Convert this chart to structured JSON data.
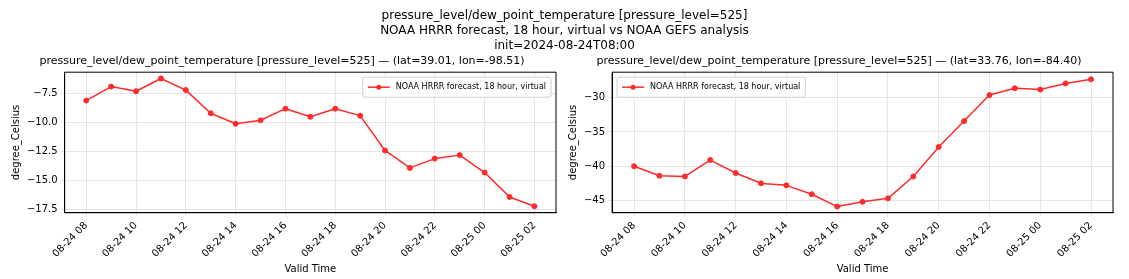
{
  "chart_data": [
    {
      "type": "other",
      "title": "pressure_level/dew_point_temperature [pressure_level=525]\nNOAA HRRR forecast, 18 hour, virtual vs NOAA GEFS analysis\ninit=2024-08-24T08:00"
    },
    {
      "type": "line",
      "title": "pressure_level/dew_point_temperature [pressure_level=525] — (lat=39.01, lon=-98.51)",
      "xlabel": "Valid Time",
      "ylabel": "degree_Celsius",
      "x": [
        "2024-08-24T08:00",
        "2024-08-24T09:00",
        "2024-08-24T10:00",
        "2024-08-24T11:00",
        "2024-08-24T12:00",
        "2024-08-24T13:00",
        "2024-08-24T14:00",
        "2024-08-24T15:00",
        "2024-08-24T16:00",
        "2024-08-24T17:00",
        "2024-08-24T18:00",
        "2024-08-24T19:00",
        "2024-08-24T20:00",
        "2024-08-24T21:00",
        "2024-08-24T22:00",
        "2024-08-24T23:00",
        "2024-08-25T00:00",
        "2024-08-25T01:00",
        "2024-08-25T02:00"
      ],
      "series": [
        {
          "name": "NOAA HRRR forecast, 18 hour, virtual",
          "color": "#ff2a2a",
          "values": [
            -8.1,
            -6.9,
            -7.3,
            -6.2,
            -7.2,
            -9.2,
            -10.1,
            -9.8,
            -8.8,
            -9.5,
            -8.8,
            -9.4,
            -12.4,
            -13.9,
            -13.1,
            -12.8,
            -14.3,
            -16.4,
            -17.2
          ]
        }
      ],
      "xlim": [
        "2024-08-24T07:08",
        "2024-08-25T02:52"
      ],
      "xticks": [
        {
          "value": "2024-08-24T08:00",
          "label": "08-24 08"
        },
        {
          "value": "2024-08-24T10:00",
          "label": "08-24 10"
        },
        {
          "value": "2024-08-24T12:00",
          "label": "08-24 12"
        },
        {
          "value": "2024-08-24T14:00",
          "label": "08-24 14"
        },
        {
          "value": "2024-08-24T16:00",
          "label": "08-24 16"
        },
        {
          "value": "2024-08-24T18:00",
          "label": "08-24 18"
        },
        {
          "value": "2024-08-24T20:00",
          "label": "08-24 20"
        },
        {
          "value": "2024-08-24T22:00",
          "label": "08-24 22"
        },
        {
          "value": "2024-08-25T00:00",
          "label": "08-25 00"
        },
        {
          "value": "2024-08-25T02:00",
          "label": "08-25 02"
        }
      ],
      "ylim": [
        -17.76,
        -5.66
      ],
      "yticks": [
        {
          "value": -17.5,
          "label": "−17.5"
        },
        {
          "value": -15,
          "label": "−15.0"
        },
        {
          "value": -12.5,
          "label": "−12.5"
        },
        {
          "value": -10,
          "label": "−10.0"
        },
        {
          "value": -7.5,
          "label": "−7.5"
        }
      ],
      "grid": true,
      "legend": "top right",
      "marker": "circle",
      "line_style": "solid"
    },
    {
      "type": "line",
      "title": "pressure_level/dew_point_temperature [pressure_level=525] — (lat=33.76, lon=-84.40)",
      "xlabel": "Valid Time",
      "ylabel": "degree_Celsius",
      "x": [
        "2024-08-24T08:00",
        "2024-08-24T09:00",
        "2024-08-24T10:00",
        "2024-08-24T11:00",
        "2024-08-24T12:00",
        "2024-08-24T13:00",
        "2024-08-24T14:00",
        "2024-08-24T15:00",
        "2024-08-24T16:00",
        "2024-08-24T17:00",
        "2024-08-24T18:00",
        "2024-08-24T19:00",
        "2024-08-24T20:00",
        "2024-08-24T21:00",
        "2024-08-24T22:00",
        "2024-08-24T23:00",
        "2024-08-25T00:00",
        "2024-08-25T01:00",
        "2024-08-25T02:00"
      ],
      "series": [
        {
          "name": "NOAA HRRR forecast, 18 hour, virtual",
          "color": "#ff2a2a",
          "values": [
            -40.0,
            -41.4,
            -41.5,
            -39.1,
            -41.0,
            -42.5,
            -42.8,
            -44.1,
            -45.9,
            -45.2,
            -44.7,
            -41.5,
            -37.2,
            -33.4,
            -29.6,
            -28.6,
            -28.8,
            -27.9,
            -27.3
          ]
        }
      ],
      "xlim": [
        "2024-08-24T07:08",
        "2024-08-25T02:52"
      ],
      "xticks": [
        {
          "value": "2024-08-24T08:00",
          "label": "08-24 08"
        },
        {
          "value": "2024-08-24T10:00",
          "label": "08-24 10"
        },
        {
          "value": "2024-08-24T12:00",
          "label": "08-24 12"
        },
        {
          "value": "2024-08-24T14:00",
          "label": "08-24 14"
        },
        {
          "value": "2024-08-24T16:00",
          "label": "08-24 16"
        },
        {
          "value": "2024-08-24T18:00",
          "label": "08-24 18"
        },
        {
          "value": "2024-08-24T20:00",
          "label": "08-24 20"
        },
        {
          "value": "2024-08-24T22:00",
          "label": "08-24 22"
        },
        {
          "value": "2024-08-25T00:00",
          "label": "08-25 00"
        },
        {
          "value": "2024-08-25T02:00",
          "label": "08-25 02"
        }
      ],
      "ylim": [
        -46.8,
        -26.26
      ],
      "yticks": [
        {
          "value": -45,
          "label": "−45"
        },
        {
          "value": -40,
          "label": "−40"
        },
        {
          "value": -35,
          "label": "−35"
        },
        {
          "value": -30,
          "label": "−30"
        }
      ],
      "grid": true,
      "legend": "top left",
      "marker": "circle",
      "line_style": "solid"
    }
  ]
}
